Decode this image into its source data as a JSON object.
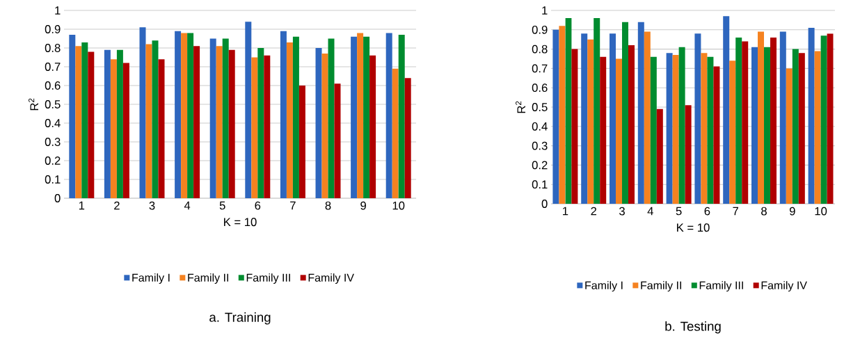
{
  "chart_data": [
    {
      "type": "bar",
      "title": "a.   Training",
      "xlabel": "K = 10",
      "ylabel": "R$^{2}$",
      "categories": [
        "1",
        "2",
        "3",
        "4",
        "5",
        "6",
        "7",
        "8",
        "9",
        "10"
      ],
      "series": [
        {
          "name": "Family I",
          "color": "#2e66be",
          "values": [
            0.87,
            0.79,
            0.91,
            0.89,
            0.85,
            0.94,
            0.89,
            0.8,
            0.86,
            0.88
          ]
        },
        {
          "name": "Family II",
          "color": "#f58220",
          "values": [
            0.81,
            0.74,
            0.82,
            0.88,
            0.81,
            0.75,
            0.83,
            0.77,
            0.88,
            0.69
          ]
        },
        {
          "name": "Family III",
          "color": "#008c2f",
          "values": [
            0.83,
            0.79,
            0.84,
            0.88,
            0.85,
            0.8,
            0.86,
            0.85,
            0.86,
            0.87
          ]
        },
        {
          "name": "Family IV",
          "color": "#b00000",
          "values": [
            0.78,
            0.72,
            0.74,
            0.81,
            0.79,
            0.76,
            0.6,
            0.61,
            0.76,
            0.64
          ]
        }
      ],
      "ylim": [
        0,
        1
      ],
      "yticks": [
        0,
        0.1,
        0.2,
        0.3,
        0.4,
        0.5,
        0.6,
        0.7,
        0.8,
        0.9,
        1
      ],
      "grid": "y",
      "legend": "bottom"
    },
    {
      "type": "bar",
      "title": "b.   Testing",
      "xlabel": "K = 10",
      "ylabel": "R$^{2}$",
      "categories": [
        "1",
        "2",
        "3",
        "4",
        "5",
        "6",
        "7",
        "8",
        "9",
        "10"
      ],
      "series": [
        {
          "name": "Family I",
          "color": "#2e66be",
          "values": [
            0.9,
            0.88,
            0.88,
            0.94,
            0.78,
            0.88,
            0.97,
            0.81,
            0.89,
            0.91
          ]
        },
        {
          "name": "Family II",
          "color": "#f58220",
          "values": [
            0.92,
            0.85,
            0.75,
            0.89,
            0.77,
            0.78,
            0.74,
            0.89,
            0.7,
            0.79
          ]
        },
        {
          "name": "Family III",
          "color": "#008c2f",
          "values": [
            0.96,
            0.96,
            0.94,
            0.76,
            0.81,
            0.76,
            0.86,
            0.81,
            0.8,
            0.87
          ]
        },
        {
          "name": "Family IV",
          "color": "#b00000",
          "values": [
            0.8,
            0.76,
            0.82,
            0.49,
            0.51,
            0.71,
            0.84,
            0.86,
            0.78,
            0.88
          ]
        }
      ],
      "ylim": [
        0,
        1
      ],
      "yticks": [
        0,
        0.1,
        0.2,
        0.3,
        0.4,
        0.5,
        0.6,
        0.7,
        0.8,
        0.9,
        1
      ],
      "grid": "y",
      "legend": "bottom"
    }
  ]
}
